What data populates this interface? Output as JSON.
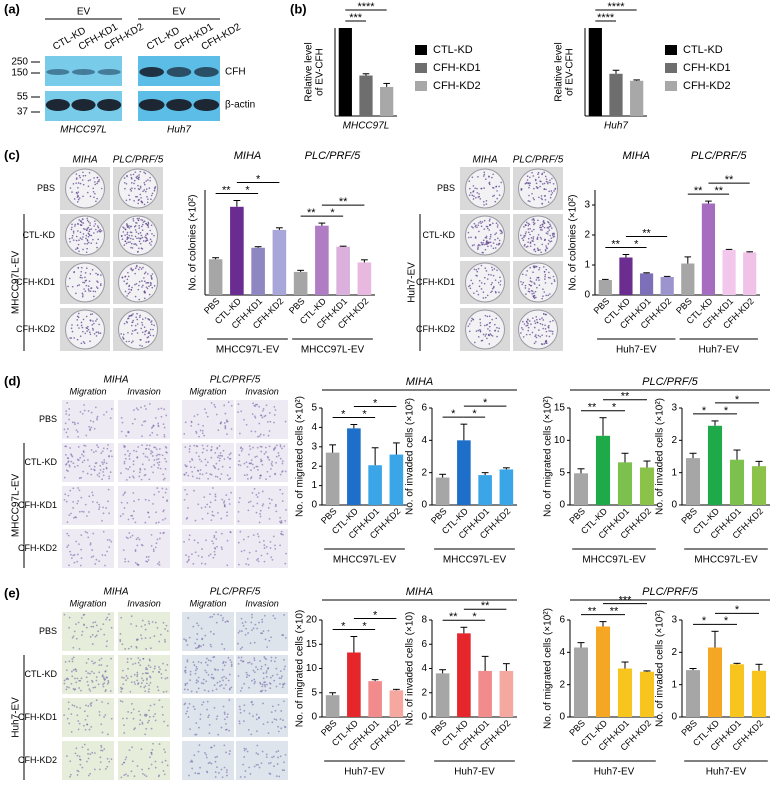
{
  "panel_labels": [
    "(a)",
    "(b)",
    "(c)",
    "(d)",
    "(e)"
  ],
  "blot": {
    "groups": [
      "EV",
      "EV"
    ],
    "lanes": [
      [
        "CTL-KD",
        "CFH-KD1",
        "CFH-KD2"
      ],
      [
        "CTL-KD",
        "CFH-KD1",
        "CFH-KD2"
      ]
    ],
    "markers": [
      250,
      150,
      55,
      37
    ],
    "proteins": [
      "CFH",
      "β-actin"
    ],
    "cell_lines": [
      "MHCC97L",
      "Huh7"
    ]
  },
  "images": [
    {
      "columns": [
        "MIHA",
        "PLC/PRF/5"
      ],
      "rows": [
        "PBS",
        "CTL-KD",
        "CFH-KD1",
        "CFH-KD2"
      ],
      "side": "MHCC97L-EV"
    },
    {
      "columns": [
        "MIHA",
        "PLC/PRF/5"
      ],
      "rows": [
        "PBS",
        "CTL-KD",
        "CFH-KD1",
        "CFH-KD2"
      ],
      "side": "Huh7-EV"
    },
    {
      "headers": [
        "MIHA",
        "PLC/PRF/5"
      ],
      "subheaders": [
        "Migration",
        "Invasion",
        "Migration",
        "Invasion"
      ],
      "rows": [
        "PBS",
        "CTL-KD",
        "CFH-KD1",
        "CFH-KD2"
      ],
      "side": "MHCC97L-EV"
    },
    {
      "headers": [
        "MIHA",
        "PLC/PRF/5"
      ],
      "subheaders": [
        "Migration",
        "Invasion",
        "Migration",
        "Invasion"
      ],
      "rows": [
        "PBS",
        "CTL-KD",
        "CFH-KD1",
        "CFH-KD2"
      ],
      "side": "Huh7-EV"
    }
  ],
  "section_titles": [
    [
      "MIHA",
      "PLC/PRF/5"
    ],
    [
      "MIHA",
      "PLC/PRF/5"
    ]
  ],
  "chart_data": [
    {
      "type": "bar",
      "ylabel": [
        "Relative level",
        "of EV-CFH"
      ],
      "xlabel": "MHCC97L",
      "legend": true,
      "categories": [
        "CTL-KD",
        "CFH-KD1",
        "CFH-KD2"
      ],
      "values": [
        1.0,
        0.46,
        0.33
      ],
      "errors": [
        0,
        0.02,
        0.04
      ],
      "colors": [
        "#000000",
        "#6e6e6e",
        "#a8a8a8"
      ],
      "ylim": [
        0,
        1
      ],
      "annotations": [
        "***",
        "****"
      ]
    },
    {
      "type": "bar",
      "ylabel": [
        "Relative level",
        "of EV-CFH"
      ],
      "xlabel": "Huh7",
      "legend": true,
      "categories": [
        "CTL-KD",
        "CFH-KD1",
        "CFH-KD2"
      ],
      "values": [
        1.0,
        0.48,
        0.4
      ],
      "errors": [
        0,
        0.04,
        0.01
      ],
      "colors": [
        "#000000",
        "#6e6e6e",
        "#a8a8a8"
      ],
      "ylim": [
        0,
        1
      ],
      "annotations": [
        "****",
        "****"
      ]
    },
    {
      "type": "bar",
      "ylabel": "No. of colonies (×10²)",
      "group_titles": [
        "MIHA",
        "PLC/PRF/5"
      ],
      "group_xlabels": [
        "MHCC97L-EV",
        "MHCC97L-EV"
      ],
      "categories": [
        "PBS",
        "CTL-KD",
        "CFH-KD1",
        "CFH-KD2",
        "PBS",
        "CTL-KD",
        "CFH-KD1",
        "CFH-KD2"
      ],
      "values": [
        0.68,
        1.68,
        0.9,
        1.24,
        0.44,
        1.32,
        0.92,
        0.62
      ],
      "errors": [
        0.03,
        0.12,
        0.02,
        0.04,
        0.03,
        0.05,
        0.01,
        0.05
      ],
      "colors": [
        "#a6a6a6",
        "#6a2c91",
        "#8e87c2",
        "#a9a6d9",
        "#a6a6a6",
        "#b07cc4",
        "#dcb0dc",
        "#e8b8e0"
      ],
      "ylim": [
        0,
        2
      ],
      "annotations": [
        "**",
        "*",
        "*",
        "**",
        "*",
        "**"
      ]
    },
    {
      "type": "bar",
      "ylabel": "No. of colonies (×10²)",
      "group_titles": [
        "MIHA",
        "PLC/PRF/5"
      ],
      "group_xlabels": [
        "Huh7-EV",
        "Huh7-EV"
      ],
      "categories": [
        "PBS",
        "CTL-KD",
        "CFH-KD1",
        "CFH-KD2",
        "PBS",
        "CTL-KD",
        "CFH-KD1",
        "CFH-KD2"
      ],
      "values": [
        0.5,
        1.25,
        0.72,
        0.6,
        1.05,
        3.05,
        1.5,
        1.42
      ],
      "errors": [
        0.02,
        0.1,
        0.02,
        0.02,
        0.22,
        0.08,
        0.02,
        0.02
      ],
      "colors": [
        "#a6a6a6",
        "#6b2d8f",
        "#7d6fb8",
        "#9c94cc",
        "#a6a6a6",
        "#a56cc0",
        "#f3c7ec",
        "#f0c2e8"
      ],
      "ylim": [
        0,
        3.5
      ],
      "yticks": [
        0,
        1,
        2,
        3
      ],
      "annotations": [
        "**",
        "*",
        "**",
        "**",
        "**",
        "**"
      ]
    },
    {
      "type": "bar",
      "ylabel": "No. of migrated cells (×10²)",
      "group_xlabels": [
        "MHCC97L-EV"
      ],
      "categories": [
        "PBS",
        "CTL-KD",
        "CFH-KD1",
        "CFH-KD2"
      ],
      "values": [
        2.7,
        3.95,
        2.05,
        2.6
      ],
      "errors": [
        0.4,
        0.2,
        0.9,
        0.6
      ],
      "colors": [
        "#a6a6a6",
        "#1e6fc9",
        "#3aa6e8",
        "#3aa6e8"
      ],
      "ylim": [
        0,
        5
      ],
      "yticks": [
        0,
        1,
        2,
        3,
        4,
        5
      ],
      "annotations": [
        "*",
        "*",
        "*"
      ]
    },
    {
      "type": "bar",
      "ylabel": "No. of invaded cells (×10²)",
      "group_xlabels": [
        "MHCC97L-EV"
      ],
      "categories": [
        "PBS",
        "CTL-KD",
        "CFH-KD1",
        "CFH-KD2"
      ],
      "values": [
        1.7,
        4.0,
        1.85,
        2.2
      ],
      "errors": [
        0.2,
        1.0,
        0.15,
        0.1
      ],
      "colors": [
        "#a6a6a6",
        "#1e6fc9",
        "#3aa6e8",
        "#3aa6e8"
      ],
      "ylim": [
        0,
        6
      ],
      "yticks": [
        0,
        2,
        4,
        6
      ],
      "annotations": [
        "*",
        "*",
        "*"
      ]
    },
    {
      "type": "bar",
      "ylabel": "No. of migrated cells (×10²)",
      "group_xlabels": [
        "MHCC97L-EV"
      ],
      "categories": [
        "PBS",
        "CTL-KD",
        "CFH-KD1",
        "CFH-KD2"
      ],
      "values": [
        4.9,
        10.7,
        6.6,
        5.8
      ],
      "errors": [
        0.7,
        2.8,
        1.4,
        1.0
      ],
      "colors": [
        "#a6a6a6",
        "#1faa4a",
        "#7cc04e",
        "#8bc34a"
      ],
      "ylim": [
        0,
        15
      ],
      "yticks": [
        0,
        5,
        10,
        15
      ],
      "annotations": [
        "**",
        "*",
        "**"
      ]
    },
    {
      "type": "bar",
      "ylabel": "No. of invaded cells (×10²)",
      "group_xlabels": [
        "MHCC97L-EV"
      ],
      "categories": [
        "PBS",
        "CTL-KD",
        "CFH-KD1",
        "CFH-KD2"
      ],
      "values": [
        1.45,
        2.45,
        1.4,
        1.2
      ],
      "errors": [
        0.15,
        0.15,
        0.3,
        0.15
      ],
      "colors": [
        "#a6a6a6",
        "#1faa4a",
        "#7cc04e",
        "#8bc34a"
      ],
      "ylim": [
        0,
        3
      ],
      "yticks": [
        0,
        1,
        2,
        3
      ],
      "annotations": [
        "*",
        "*",
        "*"
      ]
    },
    {
      "type": "bar",
      "ylabel": "No. of migrated cells (×10)",
      "group_xlabels": [
        "Huh7-EV"
      ],
      "categories": [
        "PBS",
        "CTL-KD",
        "CFH-KD1",
        "CFH-KD2"
      ],
      "values": [
        4.5,
        13.3,
        7.4,
        5.5
      ],
      "errors": [
        0.5,
        3.3,
        0.3,
        0.2
      ],
      "colors": [
        "#a6a6a6",
        "#e5262a",
        "#f28c8c",
        "#f4a8a0"
      ],
      "ylim": [
        0,
        20
      ],
      "yticks": [
        0,
        5,
        10,
        15,
        20
      ],
      "annotations": [
        "*",
        "*",
        "*"
      ]
    },
    {
      "type": "bar",
      "ylabel": "No. of invaded cells (×10)",
      "group_xlabels": [
        "Huh7-EV"
      ],
      "categories": [
        "PBS",
        "CTL-KD",
        "CFH-KD1",
        "CFH-KD2"
      ],
      "values": [
        3.6,
        6.9,
        3.8,
        3.8
      ],
      "errors": [
        0.3,
        0.5,
        1.2,
        0.6
      ],
      "colors": [
        "#a6a6a6",
        "#e5262a",
        "#f28c8c",
        "#f4a8a0"
      ],
      "ylim": [
        0,
        8
      ],
      "yticks": [
        0,
        2,
        4,
        6,
        8
      ],
      "annotations": [
        "**",
        "*",
        "**"
      ]
    },
    {
      "type": "bar",
      "ylabel": "No. of migrated cells (×10²)",
      "group_xlabels": [
        "Huh7-EV"
      ],
      "categories": [
        "PBS",
        "CTL-KD",
        "CFH-KD1",
        "CFH-KD2"
      ],
      "values": [
        4.3,
        5.6,
        3.0,
        2.8
      ],
      "errors": [
        0.3,
        0.3,
        0.4,
        0.05
      ],
      "colors": [
        "#a6a6a6",
        "#f5a623",
        "#f7c51e",
        "#f7c51e"
      ],
      "ylim": [
        0,
        6
      ],
      "yticks": [
        0,
        2,
        4,
        6
      ],
      "annotations": [
        "**",
        "**",
        "***"
      ]
    },
    {
      "type": "bar",
      "ylabel": "No. of invaded cells (×10²)",
      "group_xlabels": [
        "Huh7-EV"
      ],
      "categories": [
        "PBS",
        "CTL-KD",
        "CFH-KD1",
        "CFH-KD2"
      ],
      "values": [
        1.45,
        2.15,
        1.63,
        1.43
      ],
      "errors": [
        0.05,
        0.5,
        0.03,
        0.2
      ],
      "colors": [
        "#a6a6a6",
        "#f5a623",
        "#f7c51e",
        "#f7c51e"
      ],
      "ylim": [
        0,
        3
      ],
      "yticks": [
        0,
        1,
        2,
        3
      ],
      "annotations": [
        "*",
        "*",
        "*"
      ]
    }
  ]
}
